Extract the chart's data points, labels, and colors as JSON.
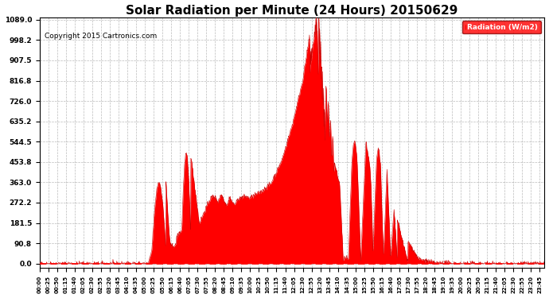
{
  "title": "Solar Radiation per Minute (24 Hours) 20150629",
  "copyright_text": "Copyright 2015 Cartronics.com",
  "legend_label": "Radiation (W/m2)",
  "y_ticks": [
    0.0,
    90.8,
    181.5,
    272.2,
    363.0,
    453.8,
    544.5,
    635.2,
    726.0,
    816.8,
    907.5,
    998.2,
    1089.0
  ],
  "y_max": 1089.0,
  "fill_color": "#FF0000",
  "line_color": "#CC0000",
  "bg_color": "#FFFFFF",
  "grid_color": "#AAAAAA",
  "title_fontsize": 11,
  "copyright_fontsize": 6.5,
  "legend_bg": "#FF0000",
  "legend_text_color": "#FFFFFF"
}
